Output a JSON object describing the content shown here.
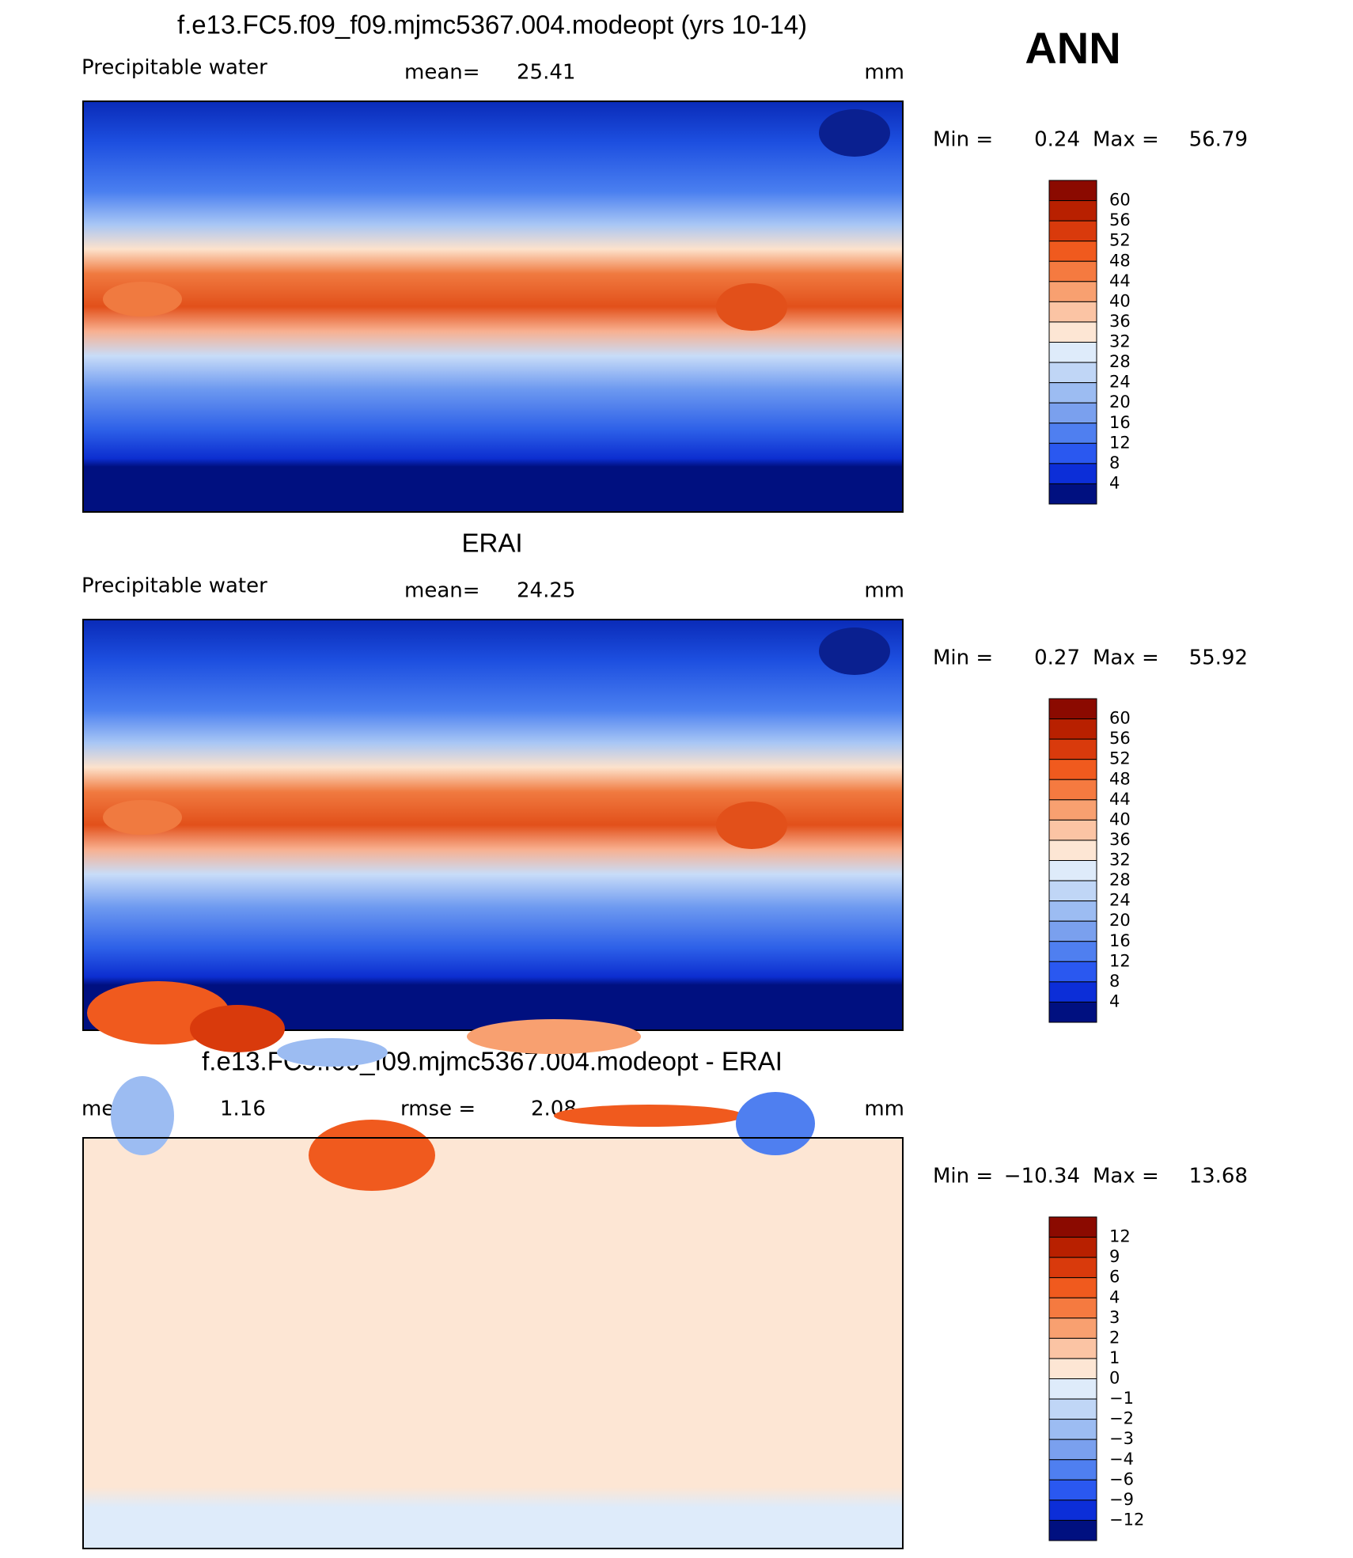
{
  "header": {
    "season": "ANN"
  },
  "panels": [
    {
      "title": "f.e13.FC5.f09_f09.mjmc5367.004.modeopt (yrs 10-14)",
      "field": "Precipitable water",
      "mean_label": "mean=",
      "mean": 25.41,
      "unit": "mm",
      "min_label": "Min =",
      "min": 0.24,
      "max_label": "Max =",
      "max": 56.79,
      "colorbar": {
        "colors": [
          "#8b0a00",
          "#b82000",
          "#d93a0c",
          "#f05a1e",
          "#f57a40",
          "#f8a070",
          "#fbc4a4",
          "#fde6d4",
          "#deebfa",
          "#c0d6f6",
          "#9cbcf2",
          "#7aa0ee",
          "#4f7ff0",
          "#2a58f0",
          "#0c2ed8",
          "#001080"
        ],
        "levels": [
          60,
          56,
          52,
          48,
          44,
          40,
          36,
          32,
          28,
          24,
          20,
          16,
          12,
          8,
          4
        ]
      }
    },
    {
      "title": "ERAI",
      "field": "Precipitable water",
      "mean_label": "mean=",
      "mean": 24.25,
      "unit": "mm",
      "min_label": "Min =",
      "min": 0.27,
      "max_label": "Max =",
      "max": 55.92,
      "colorbar": {
        "colors": [
          "#8b0a00",
          "#b82000",
          "#d93a0c",
          "#f05a1e",
          "#f57a40",
          "#f8a070",
          "#fbc4a4",
          "#fde6d4",
          "#deebfa",
          "#c0d6f6",
          "#9cbcf2",
          "#7aa0ee",
          "#4f7ff0",
          "#2a58f0",
          "#0c2ed8",
          "#001080"
        ],
        "levels": [
          60,
          56,
          52,
          48,
          44,
          40,
          36,
          32,
          28,
          24,
          20,
          16,
          12,
          8,
          4
        ]
      }
    },
    {
      "title": "f.e13.FC5.f09_f09.mjmc5367.004.modeopt - ERAI",
      "mean_label": "mean =",
      "mean": 1.16,
      "rmse_label": "rmse =",
      "rmse": 2.08,
      "unit": "mm",
      "min_label": "Min =",
      "min": "−10.34",
      "max_label": "Max =",
      "max": 13.68,
      "colorbar": {
        "colors": [
          "#8b0a00",
          "#b82000",
          "#d93a0c",
          "#f05a1e",
          "#f57a40",
          "#f8a070",
          "#fbc4a4",
          "#fde6d4",
          "#deebfa",
          "#c0d6f6",
          "#9cbcf2",
          "#7aa0ee",
          "#4f7ff0",
          "#2a58f0",
          "#0c2ed8",
          "#001080"
        ],
        "levels": [
          12,
          9,
          6,
          4,
          3,
          2,
          1,
          0,
          "−1",
          "−2",
          "−3",
          "−4",
          "−6",
          "−9",
          "−12"
        ]
      }
    }
  ]
}
